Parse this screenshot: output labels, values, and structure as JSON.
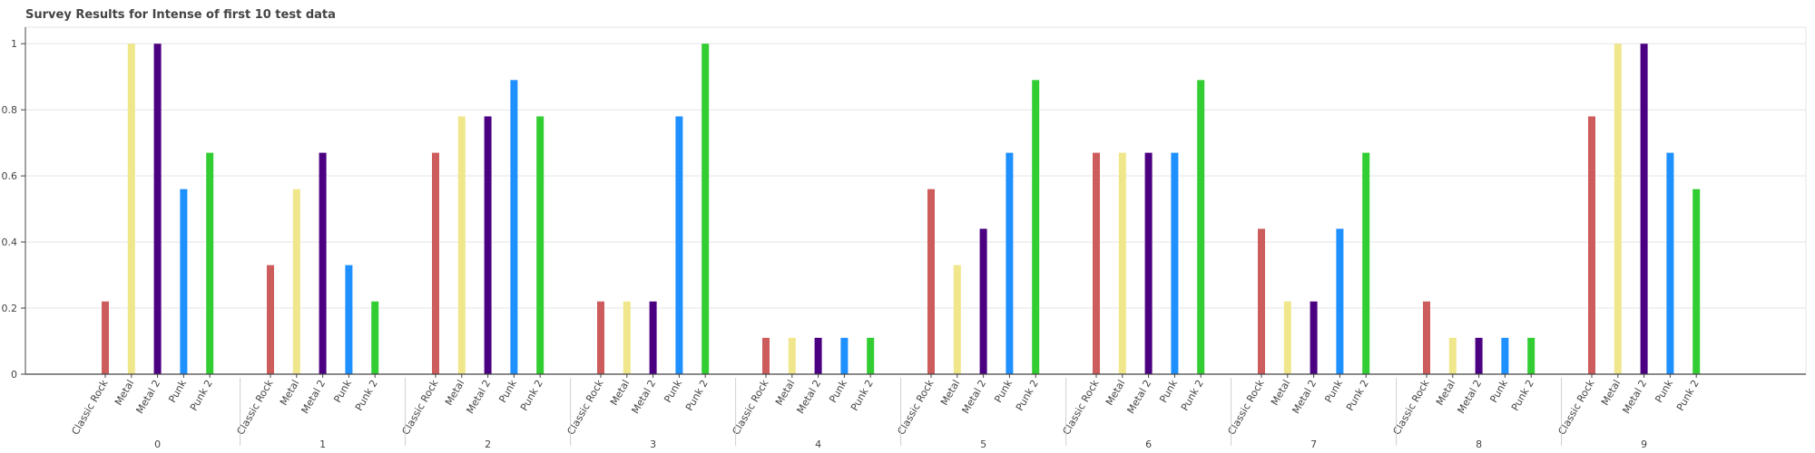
{
  "chart_data": {
    "type": "bar",
    "title": "Survey Results for Intense of first 10 test data",
    "xlabel": "",
    "ylabel": "",
    "groups": [
      "0",
      "1",
      "2",
      "3",
      "4",
      "5",
      "6",
      "7",
      "8",
      "9"
    ],
    "subcategories": [
      "Classic Rock",
      "Metal",
      "Metal 2",
      "Punk",
      "Punk 2"
    ],
    "colors": {
      "Classic Rock": "#cd5c5c",
      "Metal": "#f0e68c",
      "Metal 2": "#4b0082",
      "Punk": "#1e90ff",
      "Punk 2": "#32cd32"
    },
    "series": [
      {
        "group": "0",
        "values": [
          0.22,
          1.0,
          1.0,
          0.56,
          0.67
        ]
      },
      {
        "group": "1",
        "values": [
          0.33,
          0.56,
          0.67,
          0.33,
          0.22
        ]
      },
      {
        "group": "2",
        "values": [
          0.67,
          0.78,
          0.78,
          0.89,
          0.78
        ]
      },
      {
        "group": "3",
        "values": [
          0.22,
          0.22,
          0.22,
          0.78,
          1.0
        ]
      },
      {
        "group": "4",
        "values": [
          0.11,
          0.11,
          0.11,
          0.11,
          0.11
        ]
      },
      {
        "group": "5",
        "values": [
          0.56,
          0.33,
          0.44,
          0.67,
          0.89
        ]
      },
      {
        "group": "6",
        "values": [
          0.67,
          0.67,
          0.67,
          0.67,
          0.89
        ]
      },
      {
        "group": "7",
        "values": [
          0.44,
          0.22,
          0.22,
          0.44,
          0.67
        ]
      },
      {
        "group": "8",
        "values": [
          0.22,
          0.11,
          0.11,
          0.11,
          0.11
        ]
      },
      {
        "group": "9",
        "values": [
          0.78,
          1.0,
          1.0,
          0.67,
          0.56
        ]
      }
    ],
    "ylim": [
      0,
      1.05
    ],
    "yticks": [
      "0",
      "0.2",
      "0.4",
      "0.6",
      "0.8",
      "1"
    ],
    "ytick_values": [
      0,
      0.2,
      0.4,
      0.6,
      0.8,
      1.0
    ],
    "grid": true,
    "legend": "none"
  }
}
